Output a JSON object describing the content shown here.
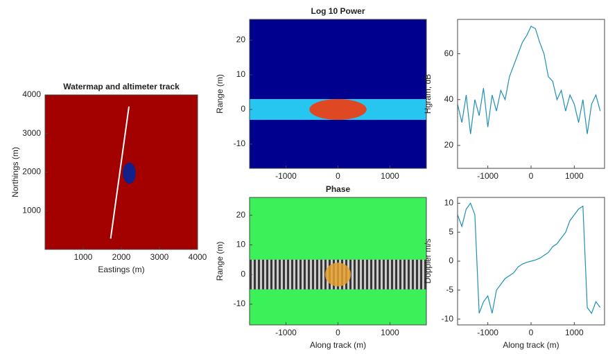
{
  "chart_data": [
    {
      "type": "map",
      "title": "Watermap and altimeter track",
      "xlabel": "Eastings (m)",
      "ylabel": "Northings (m)",
      "xlim": [
        0,
        4000
      ],
      "ylim": [
        0,
        4000
      ],
      "xticks": [
        1000,
        2000,
        3000,
        4000
      ],
      "yticks": [
        1000,
        2000,
        3000,
        4000
      ],
      "background": "#a30000",
      "track": {
        "x": [
          1720,
          2200
        ],
        "y": [
          280,
          3700
        ],
        "color": "#ffffff"
      },
      "water": {
        "x": [
          2040,
          2380
        ],
        "y": [
          1700,
          2250
        ],
        "color": "#13208a"
      }
    },
    {
      "type": "heatmap",
      "title": "Log 10 Power",
      "ylabel": "Range (m)",
      "xlim": [
        -1700,
        1700
      ],
      "ylim": [
        -17,
        26
      ],
      "xticks": [
        -1000,
        0,
        1000
      ],
      "yticks": [
        -10,
        0,
        10,
        20
      ],
      "background": "#00008f",
      "band": {
        "ylim": [
          -3,
          3
        ],
        "color": "#27c6f0"
      },
      "core": {
        "xlim": [
          -550,
          550
        ],
        "ylim": [
          -3,
          3
        ],
        "color": "#ff3300"
      }
    },
    {
      "type": "line",
      "ylabel": "Hgram, dB",
      "xlim": [
        -1700,
        1700
      ],
      "ylim": [
        10,
        75
      ],
      "xticks": [
        -1000,
        0,
        1000
      ],
      "yticks": [
        20,
        40,
        60
      ],
      "x": [
        -1700,
        -1600,
        -1500,
        -1400,
        -1300,
        -1200,
        -1100,
        -1000,
        -900,
        -800,
        -700,
        -600,
        -500,
        -400,
        -300,
        -200,
        -100,
        0,
        100,
        200,
        300,
        400,
        500,
        600,
        700,
        800,
        900,
        1000,
        1100,
        1200,
        1300,
        1400,
        1500,
        1600
      ],
      "series": [
        {
          "color": "#1f8fb5",
          "values": [
            38,
            30,
            42,
            25,
            40,
            33,
            45,
            28,
            42,
            35,
            44,
            40,
            50,
            55,
            60,
            65,
            68,
            72,
            71,
            65,
            60,
            50,
            48,
            40,
            44,
            35,
            42,
            38,
            30,
            40,
            25,
            38,
            42,
            35
          ]
        }
      ]
    },
    {
      "type": "heatmap",
      "title": "Phase",
      "xlabel": "Along track (m)",
      "ylabel": "Range (m)",
      "xlim": [
        -1700,
        1700
      ],
      "ylim": [
        -17,
        26
      ],
      "xticks": [
        -1000,
        0,
        1000
      ],
      "yticks": [
        -10,
        0,
        10,
        20
      ],
      "background": "#3cf05a",
      "band": {
        "ylim": [
          -5,
          5
        ],
        "color": "#8a8a8a"
      },
      "core": {
        "xlim": [
          -250,
          250
        ],
        "ylim": [
          -4,
          4
        ],
        "color": "#e8a030"
      }
    },
    {
      "type": "line",
      "xlabel": "Along track (m)",
      "ylabel": "Doppler m/s",
      "xlim": [
        -1700,
        1700
      ],
      "ylim": [
        -11,
        11
      ],
      "xticks": [
        -1000,
        0,
        1000
      ],
      "yticks": [
        -10,
        -5,
        0,
        5,
        10
      ],
      "x": [
        -1700,
        -1600,
        -1500,
        -1400,
        -1300,
        -1200,
        -1100,
        -1000,
        -900,
        -800,
        -700,
        -600,
        -500,
        -400,
        -300,
        -200,
        -100,
        0,
        100,
        200,
        300,
        400,
        500,
        600,
        700,
        800,
        900,
        1000,
        1100,
        1200,
        1300,
        1400,
        1500,
        1600
      ],
      "series": [
        {
          "color": "#1f8fb5",
          "values": [
            8,
            6,
            9,
            10,
            8,
            -9,
            -7,
            -6,
            -9,
            -5,
            -4,
            -3,
            -2.5,
            -2,
            -1,
            -0.5,
            -0.2,
            0,
            0.2,
            0.5,
            1,
            1.5,
            2.5,
            3,
            4,
            5,
            7,
            8,
            9,
            9.5,
            -8,
            -9,
            -7,
            -8
          ]
        }
      ]
    }
  ]
}
